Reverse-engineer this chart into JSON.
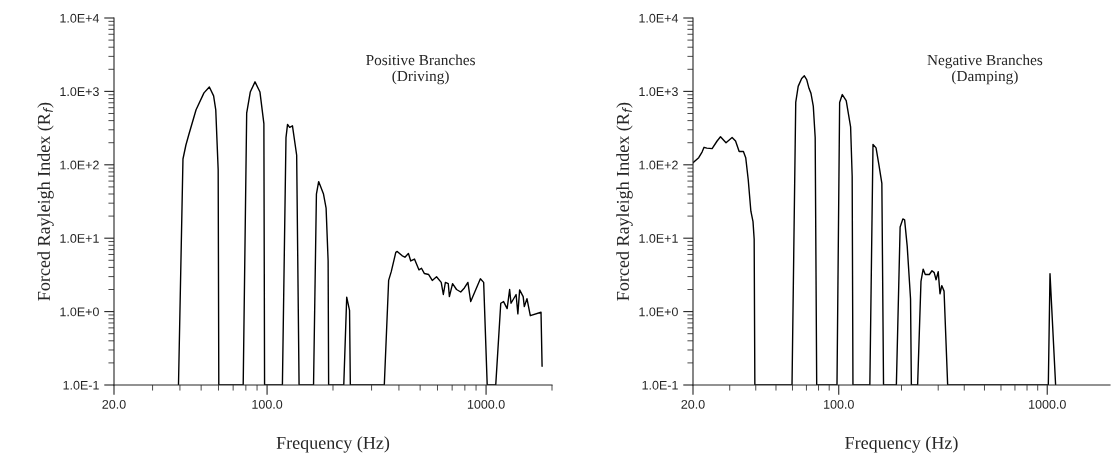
{
  "chart_data": [
    {
      "type": "line",
      "xlabel": "Frequency (Hz)",
      "ylabel": "Forced Rayleigh Index (R$_{f}$)",
      "log": "xy",
      "grid": false,
      "marker": "none",
      "line_style": "solid",
      "annotations": [
        "Positive Branches\n(Driving)"
      ],
      "xlim": [
        20,
        2000
      ],
      "xticks": [
        {
          "value": 20,
          "label": "20.0"
        },
        {
          "value": 30,
          "label": null
        },
        {
          "value": 40,
          "label": null
        },
        {
          "value": 50,
          "label": null
        },
        {
          "value": 60,
          "label": null
        },
        {
          "value": 70,
          "label": null
        },
        {
          "value": 80,
          "label": null
        },
        {
          "value": 90,
          "label": null
        },
        {
          "value": 100,
          "label": "100.0"
        },
        {
          "value": 200,
          "label": null
        },
        {
          "value": 300,
          "label": null
        },
        {
          "value": 400,
          "label": null
        },
        {
          "value": 500,
          "label": null
        },
        {
          "value": 600,
          "label": null
        },
        {
          "value": 700,
          "label": null
        },
        {
          "value": 800,
          "label": null
        },
        {
          "value": 900,
          "label": null
        },
        {
          "value": 1000,
          "label": "1000.0"
        },
        {
          "value": 2000,
          "label": null
        }
      ],
      "ylim": [
        0.1,
        10000
      ],
      "yticks": [
        {
          "value": 0.1,
          "label": "1.0E-1"
        },
        {
          "value": 0.2,
          "label": null
        },
        {
          "value": 0.3,
          "label": null
        },
        {
          "value": 0.4,
          "label": null
        },
        {
          "value": 0.5,
          "label": null
        },
        {
          "value": 0.6,
          "label": null
        },
        {
          "value": 0.7,
          "label": null
        },
        {
          "value": 0.8,
          "label": null
        },
        {
          "value": 0.9,
          "label": null
        },
        {
          "value": 1,
          "label": "1.0E+0"
        },
        {
          "value": 2,
          "label": null
        },
        {
          "value": 3,
          "label": null
        },
        {
          "value": 4,
          "label": null
        },
        {
          "value": 5,
          "label": null
        },
        {
          "value": 6,
          "label": null
        },
        {
          "value": 7,
          "label": null
        },
        {
          "value": 8,
          "label": null
        },
        {
          "value": 9,
          "label": null
        },
        {
          "value": 10,
          "label": "1.0E+1"
        },
        {
          "value": 20,
          "label": null
        },
        {
          "value": 30,
          "label": null
        },
        {
          "value": 40,
          "label": null
        },
        {
          "value": 50,
          "label": null
        },
        {
          "value": 60,
          "label": null
        },
        {
          "value": 70,
          "label": null
        },
        {
          "value": 80,
          "label": null
        },
        {
          "value": 90,
          "label": null
        },
        {
          "value": 100,
          "label": "1.0E+2"
        },
        {
          "value": 200,
          "label": null
        },
        {
          "value": 300,
          "label": null
        },
        {
          "value": 400,
          "label": null
        },
        {
          "value": 500,
          "label": null
        },
        {
          "value": 600,
          "label": null
        },
        {
          "value": 700,
          "label": null
        },
        {
          "value": 800,
          "label": null
        },
        {
          "value": 900,
          "label": null
        },
        {
          "value": 1000,
          "label": "1.0E+3"
        },
        {
          "value": 2000,
          "label": null
        },
        {
          "value": 3000,
          "label": null
        },
        {
          "value": 4000,
          "label": null
        },
        {
          "value": 5000,
          "label": null
        },
        {
          "value": 6000,
          "label": null
        },
        {
          "value": 7000,
          "label": null
        },
        {
          "value": 8000,
          "label": null
        },
        {
          "value": 9000,
          "label": null
        },
        {
          "value": 10000,
          "label": "1.0E+4"
        }
      ],
      "series": [
        {
          "color": "#000000",
          "x": [
            39.4,
            41.3,
            42.6,
            44.0,
            47.4,
            51.5,
            54.5,
            57.0,
            58.3,
            59.8,
            60.2,
            77.8,
            80.7,
            83.8,
            88.1,
            92.8,
            96.7,
            97.4,
            117.5,
            122,
            124,
            126.8,
            130.6,
            136.5,
            140,
            163,
            168,
            172,
            181,
            186,
            190,
            191,
            224,
            231,
            238,
            240,
            343,
            359,
            369,
            387,
            393,
            413,
            426,
            442,
            453,
            471,
            494,
            507,
            523,
            547,
            568,
            594,
            624,
            638,
            652,
            672,
            680,
            703,
            733,
            766,
            796,
            826,
            851,
            942,
            975,
            1012,
            1107,
            1167,
            1202,
            1248,
            1281,
            1300,
            1371,
            1397,
            1423,
            1477,
            1495,
            1537,
            1592,
            1782,
            1802
          ],
          "values": [
            0.1,
            120,
            186,
            263,
            562,
            955,
            1150,
            870,
            562,
            86,
            0.1,
            0.1,
            505,
            980,
            1350,
            980,
            363,
            0.1,
            0.1,
            234,
            355,
            324,
            340,
            135,
            0.1,
            0.1,
            40,
            59,
            40,
            25.7,
            4.9,
            0.1,
            0.1,
            1.57,
            1.04,
            0.1,
            0.1,
            2.66,
            3.5,
            6.4,
            6.6,
            5.8,
            5.5,
            6.2,
            4.9,
            5.2,
            3.7,
            3.9,
            3.3,
            3.2,
            2.66,
            2.98,
            2.5,
            1.71,
            2.5,
            2.4,
            1.6,
            2.4,
            2.0,
            1.85,
            2.1,
            2.5,
            1.37,
            2.8,
            2.5,
            0.1,
            0.1,
            1.3,
            1.37,
            1.1,
            2.0,
            1.3,
            1.71,
            0.93,
            1.98,
            1.6,
            1.17,
            1.5,
            0.88,
            0.98,
            0.18
          ]
        }
      ]
    },
    {
      "type": "line",
      "xlabel": "Frequency (Hz)",
      "ylabel": "Forced Rayleigh Index (R$_{f}$)",
      "log": "xy",
      "grid": false,
      "marker": "none",
      "line_style": "solid",
      "annotations": [
        "Negative Branches\n(Damping)"
      ],
      "xlim": [
        20,
        2000
      ],
      "xticks": [
        {
          "value": 20,
          "label": "20.0"
        },
        {
          "value": 30,
          "label": null
        },
        {
          "value": 40,
          "label": null
        },
        {
          "value": 50,
          "label": null
        },
        {
          "value": 60,
          "label": null
        },
        {
          "value": 70,
          "label": null
        },
        {
          "value": 80,
          "label": null
        },
        {
          "value": 90,
          "label": null
        },
        {
          "value": 100,
          "label": "100.0"
        },
        {
          "value": 200,
          "label": null
        },
        {
          "value": 300,
          "label": null
        },
        {
          "value": 400,
          "label": null
        },
        {
          "value": 500,
          "label": null
        },
        {
          "value": 600,
          "label": null
        },
        {
          "value": 700,
          "label": null
        },
        {
          "value": 800,
          "label": null
        },
        {
          "value": 900,
          "label": null
        },
        {
          "value": 1000,
          "label": "1000.0"
        }
      ],
      "ylim": [
        0.1,
        10000
      ],
      "yticks": [
        {
          "value": 0.1,
          "label": "1.0E-1"
        },
        {
          "value": 0.2,
          "label": null
        },
        {
          "value": 0.3,
          "label": null
        },
        {
          "value": 0.4,
          "label": null
        },
        {
          "value": 0.5,
          "label": null
        },
        {
          "value": 0.6,
          "label": null
        },
        {
          "value": 0.7,
          "label": null
        },
        {
          "value": 0.8,
          "label": null
        },
        {
          "value": 0.9,
          "label": null
        },
        {
          "value": 1,
          "label": "1.0E+0"
        },
        {
          "value": 2,
          "label": null
        },
        {
          "value": 3,
          "label": null
        },
        {
          "value": 4,
          "label": null
        },
        {
          "value": 5,
          "label": null
        },
        {
          "value": 6,
          "label": null
        },
        {
          "value": 7,
          "label": null
        },
        {
          "value": 8,
          "label": null
        },
        {
          "value": 9,
          "label": null
        },
        {
          "value": 10,
          "label": "1.0E+1"
        },
        {
          "value": 20,
          "label": null
        },
        {
          "value": 30,
          "label": null
        },
        {
          "value": 40,
          "label": null
        },
        {
          "value": 50,
          "label": null
        },
        {
          "value": 60,
          "label": null
        },
        {
          "value": 70,
          "label": null
        },
        {
          "value": 80,
          "label": null
        },
        {
          "value": 90,
          "label": null
        },
        {
          "value": 100,
          "label": "1.0E+2"
        },
        {
          "value": 200,
          "label": null
        },
        {
          "value": 300,
          "label": null
        },
        {
          "value": 400,
          "label": null
        },
        {
          "value": 500,
          "label": null
        },
        {
          "value": 600,
          "label": null
        },
        {
          "value": 700,
          "label": null
        },
        {
          "value": 800,
          "label": null
        },
        {
          "value": 900,
          "label": null
        },
        {
          "value": 1000,
          "label": "1.0E+3"
        },
        {
          "value": 2000,
          "label": null
        },
        {
          "value": 3000,
          "label": null
        },
        {
          "value": 4000,
          "label": null
        },
        {
          "value": 5000,
          "label": null
        },
        {
          "value": 6000,
          "label": null
        },
        {
          "value": 7000,
          "label": null
        },
        {
          "value": 8000,
          "label": null
        },
        {
          "value": 9000,
          "label": null
        },
        {
          "value": 10000,
          "label": "1.0E+4"
        }
      ],
      "series": [
        {
          "color": "#000000",
          "x": [
            20,
            21.3,
            22.1,
            22.6,
            23.3,
            24.7,
            26.1,
            27.1,
            28.8,
            30.8,
            32.0,
            33.3,
            34.9,
            35.8,
            36.8,
            37.9,
            38.8,
            39.3,
            39.6,
            59.7,
            62.2,
            63.9,
            66.4,
            68.4,
            70.2,
            72.0,
            73.6,
            75.5,
            77.1,
            78.4,
            98.1,
            101,
            104,
            108.6,
            114,
            116,
            117,
            141,
            146,
            151,
            156,
            161,
            164,
            189,
            197,
            203,
            207,
            213,
            221,
            223,
            239,
            248,
            254,
            260,
            272,
            280,
            287,
            293,
            300,
            306,
            312,
            320,
            333,
            1012,
            1031,
            1097
          ],
          "values": [
            107,
            125,
            149,
            173,
            169,
            166,
            211,
            241,
            200,
            236,
            211,
            152,
            152,
            125,
            63,
            23.3,
            16.8,
            9.7,
            0.1,
            0.1,
            708,
            1170,
            1500,
            1630,
            1450,
            1100,
            940,
            630,
            236,
            0.1,
            0.1,
            708,
            906,
            750,
            329,
            70,
            0.1,
            0.1,
            190,
            170,
            98,
            56,
            0.1,
            0.1,
            14.2,
            18.3,
            17.8,
            7.8,
            1.49,
            0.1,
            0.1,
            2.58,
            3.79,
            3.2,
            3.2,
            3.6,
            3.4,
            2.72,
            3.5,
            1.75,
            2.26,
            1.9,
            0.1,
            0.1,
            3.29,
            0.1
          ]
        }
      ]
    }
  ]
}
